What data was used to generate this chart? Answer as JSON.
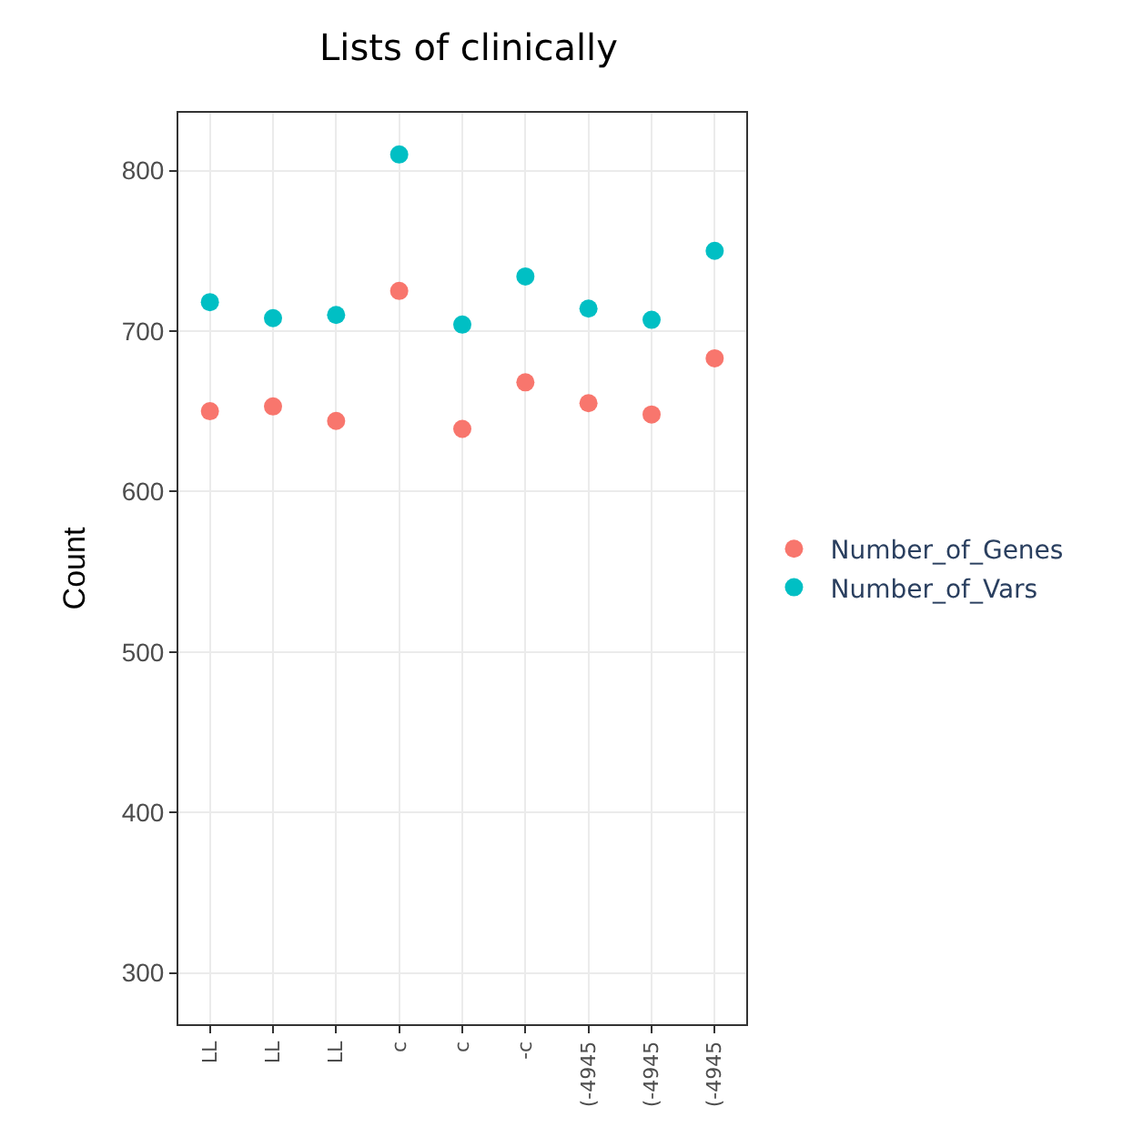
{
  "chart_data": {
    "type": "scatter",
    "title": "Lists of clinically",
    "ylabel": "Count",
    "categories": [
      "LL",
      "LL",
      "LL",
      "c",
      "c",
      "-c",
      "(-4945",
      "(-4945",
      "(-4945"
    ],
    "series": [
      {
        "name": "Number_of_Genes",
        "color": "#f8766d",
        "values": [
          650,
          653,
          644,
          725,
          639,
          668,
          655,
          648,
          683
        ]
      },
      {
        "name": "Number_of_Vars",
        "color": "#00bfc4",
        "values": [
          718,
          708,
          710,
          810,
          704,
          734,
          714,
          707,
          750
        ]
      }
    ],
    "ylim": [
      268,
      836
    ],
    "yticks": [
      300,
      400,
      500,
      600,
      700,
      800
    ],
    "grid": true,
    "legend": "right",
    "marker": "circle"
  }
}
